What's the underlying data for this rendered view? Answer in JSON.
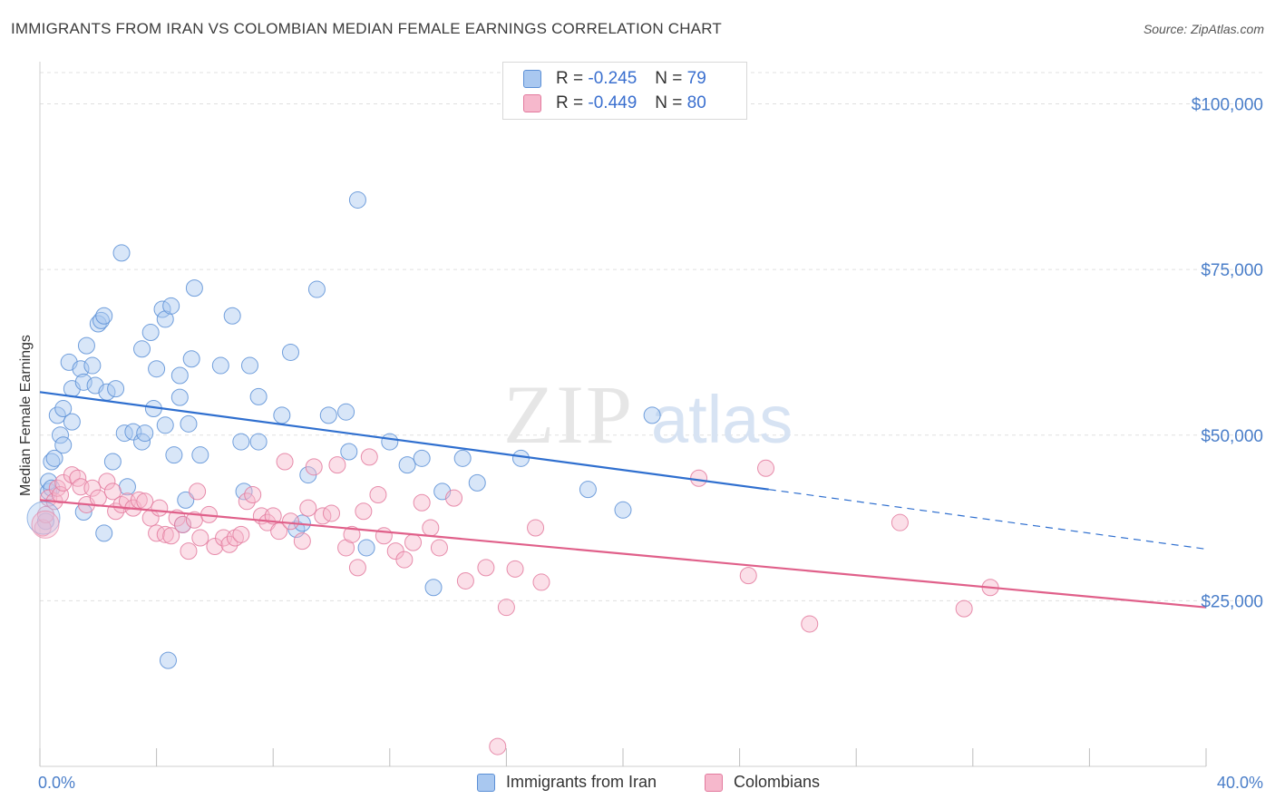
{
  "title": "IMMIGRANTS FROM IRAN VS COLOMBIAN MEDIAN FEMALE EARNINGS CORRELATION CHART",
  "source": "Source: ZipAtlas.com",
  "watermark": {
    "zip": "ZIP",
    "atlas": "atlas"
  },
  "legend": {
    "rows": [
      {
        "r_label": "R =",
        "r_value": "-0.245",
        "n_label": "N =",
        "n_value": "79",
        "color": "#a9c8f0",
        "stroke": "#5b8fd6"
      },
      {
        "r_label": "R =",
        "r_value": "-0.449",
        "n_label": "N =",
        "n_value": "80",
        "color": "#f6b8cc",
        "stroke": "#e37a9e"
      }
    ]
  },
  "bottom_legend": [
    {
      "label": "Immigrants from Iran",
      "color": "#a9c8f0",
      "stroke": "#5b8fd6"
    },
    {
      "label": "Colombians",
      "color": "#f6b8cc",
      "stroke": "#e37a9e"
    }
  ],
  "chart_data": {
    "type": "scatter",
    "title": "IMMIGRANTS FROM IRAN VS COLOMBIAN MEDIAN FEMALE EARNINGS CORRELATION CHART",
    "xlabel": "",
    "ylabel": "Median Female Earnings",
    "xlim": [
      0,
      40
    ],
    "ylim": [
      0,
      105000
    ],
    "x_tick_labels": [
      "0.0%",
      "40.0%"
    ],
    "y_ticks": [
      {
        "value": 25000,
        "label": "$25,000"
      },
      {
        "value": 50000,
        "label": "$50,000"
      },
      {
        "value": 75000,
        "label": "$75,000"
      },
      {
        "value": 100000,
        "label": "$100,000"
      }
    ],
    "grid": true,
    "series": [
      {
        "name": "Immigrants from Iran",
        "color": "#a9c8f0",
        "stroke": "#5b8fd6",
        "line_color": "#2f6fcf",
        "trend": {
          "x0": 0,
          "y0": 56500,
          "x1": 25,
          "y1": 41800,
          "dash_to_x": 40,
          "dash_to_y": 32800
        },
        "points": [
          [
            0.2,
            37000
          ],
          [
            0.3,
            41500
          ],
          [
            0.3,
            43000
          ],
          [
            0.4,
            46000
          ],
          [
            0.5,
            46500
          ],
          [
            0.6,
            53000
          ],
          [
            0.7,
            50000
          ],
          [
            0.8,
            48500
          ],
          [
            0.8,
            54000
          ],
          [
            1.0,
            61000
          ],
          [
            1.1,
            57000
          ],
          [
            1.1,
            52000
          ],
          [
            1.4,
            60000
          ],
          [
            1.5,
            58000
          ],
          [
            1.6,
            63500
          ],
          [
            1.8,
            60500
          ],
          [
            1.9,
            57500
          ],
          [
            2.0,
            66800
          ],
          [
            2.1,
            67300
          ],
          [
            2.2,
            68000
          ],
          [
            2.3,
            56500
          ],
          [
            2.5,
            46000
          ],
          [
            2.6,
            57000
          ],
          [
            2.8,
            77500
          ],
          [
            2.9,
            50300
          ],
          [
            3.0,
            42200
          ],
          [
            3.2,
            50500
          ],
          [
            3.5,
            63000
          ],
          [
            3.5,
            49000
          ],
          [
            3.6,
            50300
          ],
          [
            3.8,
            65500
          ],
          [
            3.9,
            54000
          ],
          [
            4.0,
            60000
          ],
          [
            4.2,
            69000
          ],
          [
            4.3,
            67500
          ],
          [
            4.3,
            51500
          ],
          [
            4.4,
            16000
          ],
          [
            4.5,
            69500
          ],
          [
            4.6,
            47000
          ],
          [
            4.8,
            59000
          ],
          [
            4.8,
            55700
          ],
          [
            4.9,
            36500
          ],
          [
            5.0,
            40200
          ],
          [
            5.1,
            51700
          ],
          [
            5.2,
            61500
          ],
          [
            5.3,
            72200
          ],
          [
            5.5,
            47000
          ],
          [
            6.2,
            60500
          ],
          [
            6.6,
            68000
          ],
          [
            6.9,
            49000
          ],
          [
            7.0,
            41500
          ],
          [
            7.2,
            60500
          ],
          [
            7.5,
            49000
          ],
          [
            7.5,
            55800
          ],
          [
            8.3,
            53000
          ],
          [
            8.6,
            62500
          ],
          [
            8.8,
            35800
          ],
          [
            9.2,
            44000
          ],
          [
            9.5,
            72000
          ],
          [
            9.9,
            53000
          ],
          [
            10.5,
            53500
          ],
          [
            10.6,
            47500
          ],
          [
            10.9,
            85500
          ],
          [
            11.2,
            33000
          ],
          [
            12.0,
            49000
          ],
          [
            12.6,
            45500
          ],
          [
            13.1,
            46500
          ],
          [
            13.5,
            27000
          ],
          [
            13.8,
            41500
          ],
          [
            14.5,
            46500
          ],
          [
            15.0,
            42800
          ],
          [
            16.5,
            46500
          ],
          [
            18.8,
            41800
          ],
          [
            20.0,
            38700
          ],
          [
            21.0,
            53000
          ],
          [
            1.5,
            38400
          ],
          [
            2.2,
            35200
          ],
          [
            0.4,
            42000
          ],
          [
            9.0,
            36700
          ]
        ]
      },
      {
        "name": "Colombians",
        "color": "#f6b8cc",
        "stroke": "#e37a9e",
        "line_color": "#e0608a",
        "trend": {
          "x0": 0,
          "y0": 40200,
          "x1": 40,
          "y1": 24000
        },
        "points": [
          [
            0.1,
            36000
          ],
          [
            0.2,
            38000
          ],
          [
            0.3,
            40500
          ],
          [
            0.5,
            40000
          ],
          [
            0.6,
            42000
          ],
          [
            0.7,
            41000
          ],
          [
            0.8,
            42800
          ],
          [
            1.1,
            44000
          ],
          [
            1.3,
            43500
          ],
          [
            1.4,
            42200
          ],
          [
            1.6,
            39500
          ],
          [
            1.8,
            42000
          ],
          [
            2.0,
            40500
          ],
          [
            2.3,
            43000
          ],
          [
            2.5,
            41500
          ],
          [
            2.6,
            38500
          ],
          [
            2.8,
            39500
          ],
          [
            3.0,
            40000
          ],
          [
            3.2,
            39000
          ],
          [
            3.4,
            40200
          ],
          [
            3.6,
            40000
          ],
          [
            3.8,
            37500
          ],
          [
            4.0,
            35200
          ],
          [
            4.1,
            39000
          ],
          [
            4.3,
            35000
          ],
          [
            4.5,
            34800
          ],
          [
            4.7,
            37500
          ],
          [
            4.9,
            36500
          ],
          [
            5.1,
            32500
          ],
          [
            5.3,
            37200
          ],
          [
            5.4,
            41500
          ],
          [
            5.5,
            34500
          ],
          [
            5.8,
            38000
          ],
          [
            6.0,
            33200
          ],
          [
            6.3,
            34500
          ],
          [
            6.5,
            33500
          ],
          [
            6.7,
            34500
          ],
          [
            6.9,
            35000
          ],
          [
            7.1,
            40000
          ],
          [
            7.3,
            41000
          ],
          [
            7.6,
            37800
          ],
          [
            7.8,
            36800
          ],
          [
            8.0,
            37800
          ],
          [
            8.2,
            35500
          ],
          [
            8.4,
            46000
          ],
          [
            8.6,
            37000
          ],
          [
            9.0,
            34000
          ],
          [
            9.2,
            39000
          ],
          [
            9.4,
            45200
          ],
          [
            9.7,
            37800
          ],
          [
            10.0,
            38200
          ],
          [
            10.2,
            45500
          ],
          [
            10.5,
            33000
          ],
          [
            10.7,
            35000
          ],
          [
            10.9,
            30000
          ],
          [
            11.1,
            38500
          ],
          [
            11.3,
            46700
          ],
          [
            11.6,
            41000
          ],
          [
            11.8,
            34800
          ],
          [
            12.2,
            32500
          ],
          [
            12.5,
            31200
          ],
          [
            12.8,
            33800
          ],
          [
            13.1,
            39800
          ],
          [
            13.4,
            36000
          ],
          [
            13.7,
            33000
          ],
          [
            14.2,
            40500
          ],
          [
            14.6,
            28000
          ],
          [
            15.3,
            30000
          ],
          [
            15.7,
            3000
          ],
          [
            16.0,
            24000
          ],
          [
            16.3,
            29800
          ],
          [
            17.0,
            36000
          ],
          [
            17.2,
            27800
          ],
          [
            22.6,
            43500
          ],
          [
            24.3,
            28800
          ],
          [
            24.9,
            45000
          ],
          [
            26.4,
            21500
          ],
          [
            29.5,
            36800
          ],
          [
            31.7,
            23800
          ],
          [
            32.6,
            27000
          ]
        ]
      }
    ]
  }
}
